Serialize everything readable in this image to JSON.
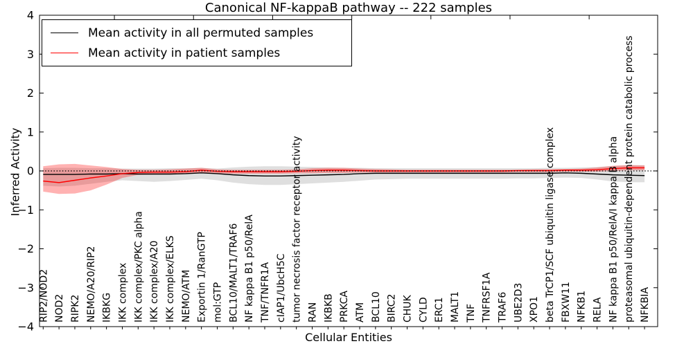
{
  "title": "Canonical NF-kappaB pathway -- 222 samples",
  "legend": {
    "entries": [
      {
        "label": "Mean activity in all permuted samples",
        "color": "#000000"
      },
      {
        "label": "Mean activity in patient samples",
        "color": "#ff0000"
      }
    ]
  },
  "axes": {
    "ylabel": "Inferred Activity",
    "xlabel": "Cellular Entities",
    "yticks": [
      4,
      3,
      2,
      1,
      0,
      -1,
      -2,
      -3,
      -4
    ],
    "ylim": [
      -4,
      4
    ]
  },
  "colors": {
    "permuted_line": "#000000",
    "patient_line": "#ff0000",
    "permuted_band": "#808080",
    "patient_band": "#ff0000",
    "baseline": "#000000"
  },
  "chart_data": {
    "type": "line",
    "title": "Canonical NF-kappaB pathway -- 222 samples",
    "xlabel": "Cellular Entities",
    "ylabel": "Inferred Activity",
    "ylim": [
      -4,
      4
    ],
    "baseline_y": 0,
    "baseline_style": "dotted",
    "legend_position": "upper left",
    "categories": [
      "RIP2/NOD2",
      "NOD2",
      "RIPK2",
      "NEMO/A20/RIP2",
      "IKBKG",
      "IKK complex",
      "IKK complex/PKC alpha",
      "IKK complex/A20",
      "IKK complex/ELKS",
      "NEMO/ATM",
      "Exportin 1/RanGTP",
      "mol:GTP",
      "BCL10/MALT1/TRAF6",
      "NF kappa B1 p50/RelA",
      "TNF/TNFR1A",
      "cIAP1/UbcH5C",
      "tumor necrosis factor receptor activity",
      "RAN",
      "IKBKB",
      "PRKCA",
      "ATM",
      "BCL10",
      "BIRC2",
      "CHUK",
      "CYLD",
      "ERC1",
      "MALT1",
      "TNF",
      "TNFRSF1A",
      "TRAF6",
      "UBE2D3",
      "XPO1",
      "beta TrCP1/SCF ubiquitin ligase complex",
      "FBXW11",
      "NFKB1",
      "RELA",
      "NF kappa B1 p50/RelA/I kappa B alpha",
      "proteasomal ubiquitin-dependent protein catabolic process",
      "NFKBIA"
    ],
    "series": [
      {
        "name": "Mean activity in all permuted samples",
        "color": "#000000",
        "values": [
          -0.09,
          -0.09,
          -0.09,
          -0.08,
          -0.08,
          -0.07,
          -0.08,
          -0.08,
          -0.08,
          -0.07,
          -0.05,
          -0.07,
          -0.1,
          -0.12,
          -0.13,
          -0.13,
          -0.12,
          -0.11,
          -0.1,
          -0.09,
          -0.07,
          -0.06,
          -0.06,
          -0.06,
          -0.06,
          -0.06,
          -0.06,
          -0.06,
          -0.06,
          -0.06,
          -0.06,
          -0.06,
          -0.06,
          -0.05,
          -0.06,
          -0.08,
          -0.1,
          -0.11,
          -0.12
        ],
        "band_upper": [
          0.07,
          0.08,
          0.08,
          0.07,
          0.07,
          0.06,
          0.06,
          0.06,
          0.07,
          0.07,
          0.08,
          0.06,
          0.09,
          0.11,
          0.12,
          0.12,
          0.11,
          0.1,
          0.09,
          0.08,
          0.08,
          0.07,
          0.07,
          0.07,
          0.07,
          0.07,
          0.07,
          0.07,
          0.07,
          0.07,
          0.07,
          0.07,
          0.08,
          0.08,
          0.09,
          0.1,
          0.13,
          0.15,
          0.15
        ],
        "band_lower": [
          -0.38,
          -0.4,
          -0.38,
          -0.33,
          -0.28,
          -0.24,
          -0.26,
          -0.28,
          -0.26,
          -0.23,
          -0.2,
          -0.24,
          -0.3,
          -0.34,
          -0.36,
          -0.36,
          -0.34,
          -0.32,
          -0.3,
          -0.28,
          -0.25,
          -0.22,
          -0.21,
          -0.2,
          -0.2,
          -0.2,
          -0.2,
          -0.2,
          -0.2,
          -0.2,
          -0.19,
          -0.19,
          -0.18,
          -0.17,
          -0.18,
          -0.22,
          -0.27,
          -0.29,
          -0.29
        ]
      },
      {
        "name": "Mean activity in patient samples",
        "color": "#ff0000",
        "values": [
          -0.26,
          -0.3,
          -0.24,
          -0.18,
          -0.13,
          -0.07,
          -0.04,
          -0.03,
          -0.03,
          -0.02,
          0.02,
          -0.01,
          -0.02,
          -0.02,
          -0.02,
          -0.02,
          -0.01,
          0.01,
          0.02,
          0.02,
          0.01,
          0.0,
          0.0,
          0.0,
          0.0,
          0.0,
          0.0,
          0.0,
          0.0,
          0.0,
          0.01,
          0.01,
          0.01,
          0.02,
          0.02,
          0.03,
          0.06,
          0.08,
          0.08
        ],
        "band_upper": [
          0.12,
          0.17,
          0.18,
          0.14,
          0.1,
          0.05,
          0.03,
          0.03,
          0.04,
          0.06,
          0.08,
          0.04,
          0.03,
          0.03,
          0.03,
          0.03,
          0.04,
          0.07,
          0.08,
          0.08,
          0.06,
          0.05,
          0.04,
          0.03,
          0.03,
          0.03,
          0.03,
          0.03,
          0.03,
          0.03,
          0.03,
          0.04,
          0.04,
          0.05,
          0.06,
          0.09,
          0.13,
          0.15,
          0.14
        ],
        "band_lower": [
          -0.53,
          -0.59,
          -0.58,
          -0.5,
          -0.35,
          -0.18,
          -0.1,
          -0.09,
          -0.09,
          -0.08,
          -0.04,
          -0.06,
          -0.07,
          -0.07,
          -0.07,
          -0.07,
          -0.06,
          -0.06,
          -0.05,
          -0.05,
          -0.04,
          -0.04,
          -0.04,
          -0.04,
          -0.04,
          -0.04,
          -0.04,
          -0.04,
          -0.04,
          -0.04,
          -0.03,
          -0.03,
          -0.03,
          -0.02,
          -0.02,
          -0.02,
          0.0,
          0.02,
          0.02
        ]
      }
    ]
  }
}
